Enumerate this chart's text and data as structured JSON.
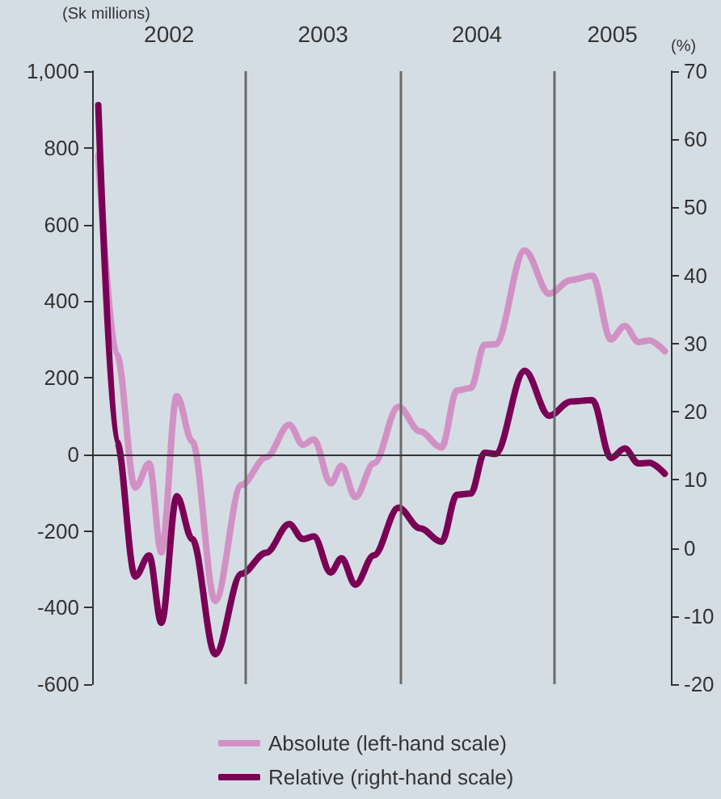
{
  "chart_data": {
    "type": "line",
    "ylabel": "(Sk millions)",
    "y2label": "(%)",
    "x": [
      2002.04,
      2002.16,
      2002.28,
      2002.37,
      2002.45,
      2002.55,
      2002.65,
      2002.8,
      2002.97,
      2003.13,
      2003.28,
      2003.37,
      2003.44,
      2003.55,
      2003.62,
      2003.71,
      2003.83,
      2003.99,
      2004.13,
      2004.27,
      2004.37,
      2004.46,
      2004.55,
      2004.62,
      2004.81,
      2004.97,
      2005.11,
      2005.25,
      2005.37,
      2005.46,
      2005.55,
      2005.62,
      2005.72
    ],
    "series": [
      {
        "name": "Absolute (left-hand scale)",
        "color": "#d291c5",
        "values": [
          780,
          260,
          -87,
          -24,
          -256,
          152,
          34,
          -383,
          -80,
          -8,
          77,
          25,
          39,
          -76,
          -30,
          -112,
          -24,
          124,
          60,
          18,
          166,
          173,
          286,
          287,
          532,
          419,
          455,
          466,
          300,
          335,
          293,
          297,
          269
        ]
      },
      {
        "name": "Relative (right-hand scale)",
        "color": "#7a0056",
        "axis": "y2",
        "values": [
          65,
          15.6,
          -4.2,
          -1.1,
          -11,
          7.6,
          1.3,
          -15.6,
          -3.8,
          -0.7,
          3.5,
          1.3,
          1.7,
          -3.6,
          -1.5,
          -5.4,
          -1.1,
          5.9,
          2.9,
          0.9,
          7.8,
          8,
          14,
          13.8,
          26,
          19.4,
          21.5,
          21.7,
          13.2,
          14.6,
          12.4,
          12.5,
          10.9
        ]
      }
    ],
    "xlim": [
      2002,
      2005.76
    ],
    "xticks": [
      {
        "value": 2002.5,
        "label": "2002"
      },
      {
        "value": 2003.5,
        "label": "2003"
      },
      {
        "value": 2004.5,
        "label": "2004"
      },
      {
        "value": 2005.38,
        "label": "2005"
      }
    ],
    "ylim": [
      -600,
      1000
    ],
    "yticks": [
      -600,
      -400,
      -200,
      0,
      200,
      400,
      600,
      800,
      {
        "value": 1000,
        "label": "1,000"
      }
    ],
    "y2lim": [
      -20,
      70
    ],
    "y2ticks": [
      -20,
      -10,
      0,
      10,
      20,
      30,
      40,
      50,
      60,
      70
    ],
    "ref_lines": [
      {
        "axis": "x",
        "value": 2003,
        "color": "#6b6b6b"
      },
      {
        "axis": "x",
        "value": 2004,
        "color": "#6b6b6b"
      },
      {
        "axis": "x",
        "value": 2005,
        "color": "#6b6b6b"
      },
      {
        "axis": "y",
        "value": 0,
        "color": "#333333"
      }
    ],
    "grid": false,
    "legend": "bottom",
    "marker": "none",
    "line_style": "solid"
  }
}
